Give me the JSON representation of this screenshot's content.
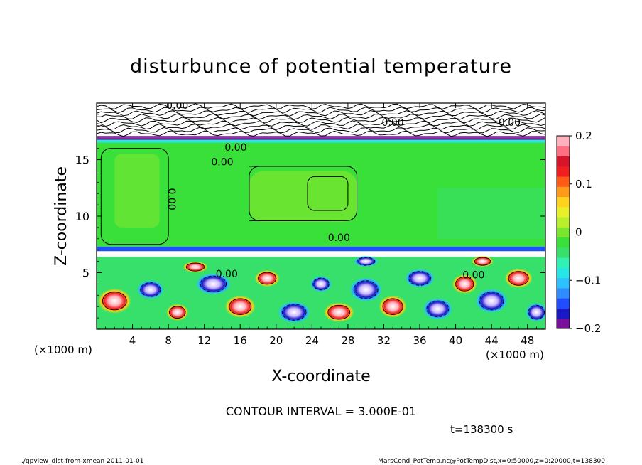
{
  "chart_data": {
    "type": "heatmap",
    "title": "disturbunce of potential temperature",
    "xlabel": "X-coordinate",
    "ylabel": "Z-coordinate",
    "x_unit_left": "(×1000 m)",
    "x_unit_right": "(×1000 m)",
    "xlim": [
      0,
      50
    ],
    "ylim": [
      0,
      20
    ],
    "x_ticks": [
      "4",
      "8",
      "12",
      "16",
      "20",
      "24",
      "28",
      "32",
      "36",
      "40",
      "44",
      "48"
    ],
    "x_tick_values": [
      4,
      8,
      12,
      16,
      20,
      24,
      28,
      32,
      36,
      40,
      44,
      48
    ],
    "y_ticks": [
      "5",
      "10",
      "15"
    ],
    "y_tick_values": [
      5,
      10,
      15
    ],
    "colorbar": {
      "ticks": [
        "0.2",
        "0.1",
        "0",
        "−0.1",
        "−0.2"
      ],
      "tick_values": [
        0.2,
        0.1,
        0,
        -0.1,
        -0.2
      ],
      "range": [
        -0.2,
        0.2
      ],
      "colors": [
        "#7a0f9e",
        "#1b18c8",
        "#1f4dff",
        "#2f8cff",
        "#2cc1ff",
        "#26e6e6",
        "#2ff2b4",
        "#36e06a",
        "#3ae03a",
        "#7ce62e",
        "#b8ee2a",
        "#e8f02a",
        "#ffd21e",
        "#ff9a1a",
        "#ff5a16",
        "#f01e1e",
        "#d8142a",
        "#ff6f82",
        "#ffb2bd"
      ]
    },
    "contour_labels": [
      "0.00",
      "0.00",
      "0.00",
      "0.00",
      "0.00",
      "0.00",
      "0.00",
      "0.00",
      "0.00"
    ],
    "regions": [
      {
        "z_range": [
          0,
          7
        ],
        "description": "strong +/- disturbances (convective eddies)"
      },
      {
        "z_range": [
          7,
          16.5
        ],
        "value": 0.0
      },
      {
        "z_range": [
          16.5,
          20
        ],
        "description": "noisy contours, near zero"
      }
    ]
  },
  "annotations": {
    "contour_interval": "CONTOUR INTERVAL = 3.000E-01",
    "time": "t=138300 s",
    "footer_left": "./gpview_dist-from-xmean 2011-01-01",
    "footer_right": "MarsCond_PotTemp.nc@PotTempDist,x=0:50000,z=0:20000,t=138300"
  }
}
